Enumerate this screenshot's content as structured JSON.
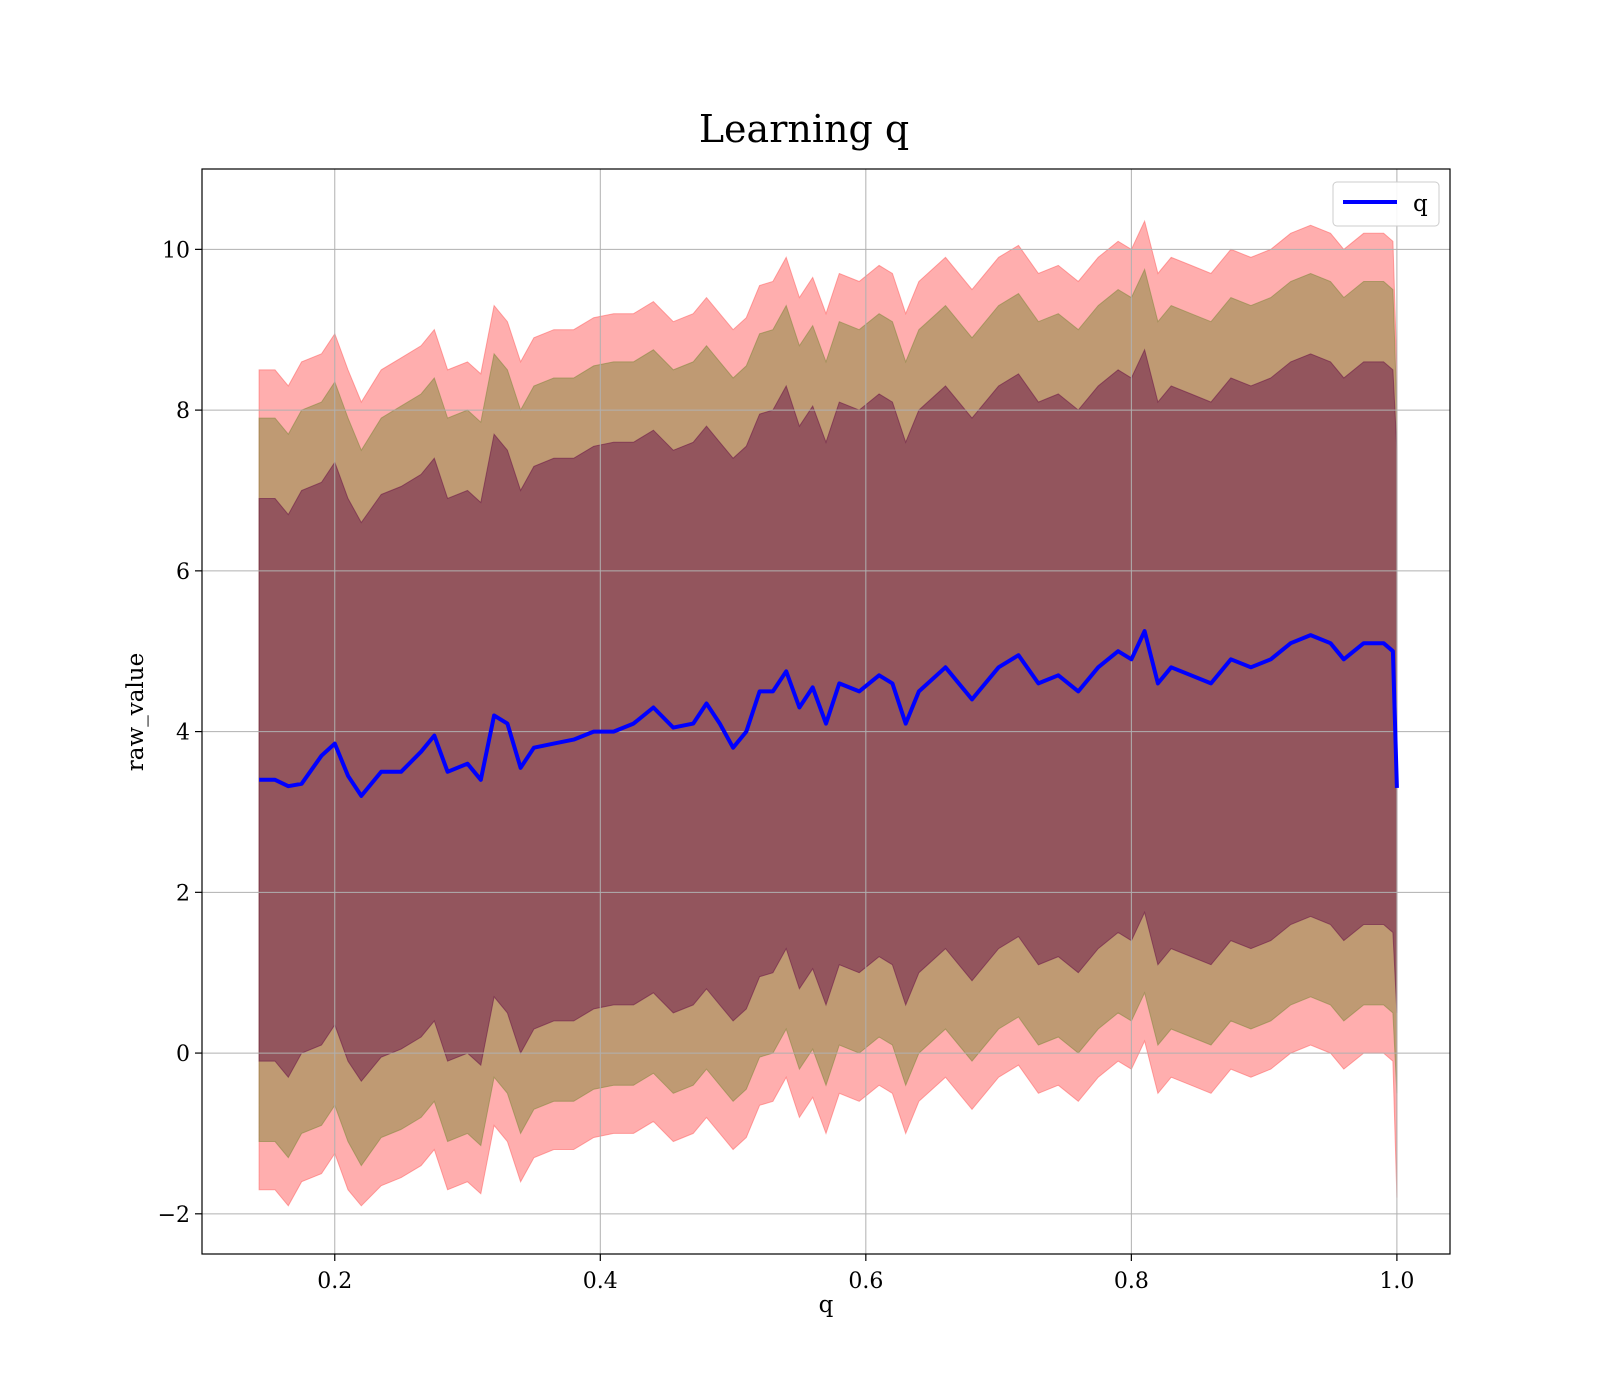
{
  "chart_data": {
    "type": "line",
    "title": "Learning q",
    "xlabel": "q",
    "ylabel": "raw_value",
    "xlim": [
      0.1,
      1.04
    ],
    "ylim": [
      -2.5,
      11.0
    ],
    "xticks": [
      0.2,
      0.4,
      0.6,
      0.8,
      1.0
    ],
    "xtick_labels": [
      "0.2",
      "0.4",
      "0.6",
      "0.8",
      "1.0"
    ],
    "yticks": [
      -2,
      0,
      2,
      4,
      6,
      8,
      10
    ],
    "ytick_labels": [
      "−2",
      "0",
      "2",
      "4",
      "6",
      "8",
      "10"
    ],
    "grid": true,
    "legend": {
      "position": "top-right",
      "entries": [
        {
          "label": "q",
          "color": "#0000ff"
        }
      ]
    },
    "colors": {
      "line": "#0000ff",
      "band_outer": "#ff6b6b",
      "band_middle": "#8a8a44",
      "band_inner": "#6f1e4a"
    },
    "x": [
      0.143,
      0.155,
      0.165,
      0.175,
      0.19,
      0.2,
      0.21,
      0.22,
      0.235,
      0.25,
      0.265,
      0.275,
      0.285,
      0.3,
      0.31,
      0.32,
      0.33,
      0.34,
      0.35,
      0.365,
      0.38,
      0.395,
      0.41,
      0.425,
      0.44,
      0.455,
      0.47,
      0.48,
      0.49,
      0.5,
      0.51,
      0.52,
      0.53,
      0.54,
      0.55,
      0.56,
      0.57,
      0.58,
      0.595,
      0.61,
      0.62,
      0.63,
      0.64,
      0.66,
      0.68,
      0.7,
      0.715,
      0.73,
      0.745,
      0.76,
      0.775,
      0.79,
      0.8,
      0.81,
      0.82,
      0.83,
      0.845,
      0.86,
      0.875,
      0.89,
      0.905,
      0.92,
      0.935,
      0.95,
      0.96,
      0.975,
      0.99,
      0.997,
      1.0
    ],
    "series": [
      {
        "name": "q",
        "y": [
          3.4,
          3.4,
          3.32,
          3.35,
          3.7,
          3.85,
          3.45,
          3.2,
          3.5,
          3.5,
          3.75,
          3.95,
          3.5,
          3.6,
          3.4,
          4.2,
          4.1,
          3.55,
          3.8,
          3.85,
          3.9,
          4.0,
          4.0,
          4.1,
          4.3,
          4.05,
          4.1,
          4.35,
          4.1,
          3.8,
          4.0,
          4.5,
          4.5,
          4.75,
          4.3,
          4.55,
          4.1,
          4.6,
          4.5,
          4.7,
          4.6,
          4.1,
          4.5,
          4.8,
          4.4,
          4.8,
          4.95,
          4.6,
          4.7,
          4.5,
          4.8,
          5.0,
          4.9,
          5.25,
          4.6,
          4.8,
          4.7,
          4.6,
          4.9,
          4.8,
          4.9,
          5.1,
          5.2,
          5.1,
          4.9,
          5.1,
          5.1,
          5.0,
          3.3
        ],
        "band_outer_upper": [
          8.5,
          8.5,
          8.3,
          8.6,
          8.7,
          8.95,
          8.5,
          8.1,
          8.5,
          8.65,
          8.8,
          9.0,
          8.5,
          8.6,
          8.45,
          9.3,
          9.1,
          8.6,
          8.9,
          9.0,
          9.0,
          9.15,
          9.2,
          9.2,
          9.35,
          9.1,
          9.2,
          9.4,
          9.2,
          9.0,
          9.15,
          9.55,
          9.6,
          9.9,
          9.4,
          9.65,
          9.2,
          9.7,
          9.6,
          9.8,
          9.7,
          9.2,
          9.6,
          9.9,
          9.5,
          9.9,
          10.05,
          9.7,
          9.8,
          9.6,
          9.9,
          10.1,
          10.0,
          10.35,
          9.7,
          9.9,
          9.8,
          9.7,
          10.0,
          9.9,
          10.0,
          10.2,
          10.3,
          10.2,
          10.0,
          10.2,
          10.2,
          10.1,
          8.5
        ],
        "band_middle_upper": [
          7.9,
          7.9,
          7.7,
          8.0,
          8.1,
          8.35,
          7.9,
          7.5,
          7.9,
          8.05,
          8.2,
          8.4,
          7.9,
          8.0,
          7.85,
          8.7,
          8.5,
          8.0,
          8.3,
          8.4,
          8.4,
          8.55,
          8.6,
          8.6,
          8.75,
          8.5,
          8.6,
          8.8,
          8.6,
          8.4,
          8.55,
          8.95,
          9.0,
          9.3,
          8.8,
          9.05,
          8.6,
          9.1,
          9.0,
          9.2,
          9.1,
          8.6,
          9.0,
          9.3,
          8.9,
          9.3,
          9.45,
          9.1,
          9.2,
          9.0,
          9.3,
          9.5,
          9.4,
          9.75,
          9.1,
          9.3,
          9.2,
          9.1,
          9.4,
          9.3,
          9.4,
          9.6,
          9.7,
          9.6,
          9.4,
          9.6,
          9.6,
          9.5,
          8.0
        ],
        "band_inner_upper": [
          6.9,
          6.9,
          6.7,
          7.0,
          7.1,
          7.35,
          6.9,
          6.6,
          6.95,
          7.05,
          7.2,
          7.4,
          6.9,
          7.0,
          6.85,
          7.7,
          7.5,
          7.0,
          7.3,
          7.4,
          7.4,
          7.55,
          7.6,
          7.6,
          7.75,
          7.5,
          7.6,
          7.8,
          7.6,
          7.4,
          7.55,
          7.95,
          8.0,
          8.3,
          7.8,
          8.05,
          7.6,
          8.1,
          8.0,
          8.2,
          8.1,
          7.6,
          8.0,
          8.3,
          7.9,
          8.3,
          8.45,
          8.1,
          8.2,
          8.0,
          8.3,
          8.5,
          8.4,
          8.75,
          8.1,
          8.3,
          8.2,
          8.1,
          8.4,
          8.3,
          8.4,
          8.6,
          8.7,
          8.6,
          8.4,
          8.6,
          8.6,
          8.5,
          7.5
        ],
        "band_inner_lower": [
          -0.1,
          -0.1,
          -0.3,
          0.0,
          0.1,
          0.35,
          -0.1,
          -0.35,
          -0.05,
          0.05,
          0.2,
          0.4,
          -0.1,
          0.0,
          -0.15,
          0.7,
          0.5,
          0.0,
          0.3,
          0.4,
          0.4,
          0.55,
          0.6,
          0.6,
          0.75,
          0.5,
          0.6,
          0.8,
          0.6,
          0.4,
          0.55,
          0.95,
          1.0,
          1.3,
          0.8,
          1.05,
          0.6,
          1.1,
          1.0,
          1.2,
          1.1,
          0.6,
          1.0,
          1.3,
          0.9,
          1.3,
          1.45,
          1.1,
          1.2,
          1.0,
          1.3,
          1.5,
          1.4,
          1.75,
          1.1,
          1.3,
          1.2,
          1.1,
          1.4,
          1.3,
          1.4,
          1.6,
          1.7,
          1.6,
          1.4,
          1.6,
          1.6,
          1.5,
          0.5
        ],
        "band_middle_lower": [
          -1.1,
          -1.1,
          -1.3,
          -1.0,
          -0.9,
          -0.65,
          -1.1,
          -1.4,
          -1.05,
          -0.95,
          -0.8,
          -0.6,
          -1.1,
          -1.0,
          -1.15,
          -0.3,
          -0.5,
          -1.0,
          -0.7,
          -0.6,
          -0.6,
          -0.45,
          -0.4,
          -0.4,
          -0.25,
          -0.5,
          -0.4,
          -0.2,
          -0.4,
          -0.6,
          -0.45,
          -0.05,
          0.0,
          0.3,
          -0.2,
          0.05,
          -0.4,
          0.1,
          0.0,
          0.2,
          0.1,
          -0.4,
          0.0,
          0.3,
          -0.1,
          0.3,
          0.45,
          0.1,
          0.2,
          0.0,
          0.3,
          0.5,
          0.4,
          0.75,
          0.1,
          0.3,
          0.2,
          0.1,
          0.4,
          0.3,
          0.4,
          0.6,
          0.7,
          0.6,
          0.4,
          0.6,
          0.6,
          0.5,
          -0.5
        ],
        "band_outer_lower": [
          -1.7,
          -1.7,
          -1.9,
          -1.6,
          -1.5,
          -1.25,
          -1.7,
          -1.9,
          -1.65,
          -1.55,
          -1.4,
          -1.2,
          -1.7,
          -1.6,
          -1.75,
          -0.9,
          -1.1,
          -1.6,
          -1.3,
          -1.2,
          -1.2,
          -1.05,
          -1.0,
          -1.0,
          -0.85,
          -1.1,
          -1.0,
          -0.8,
          -1.0,
          -1.2,
          -1.05,
          -0.65,
          -0.6,
          -0.3,
          -0.8,
          -0.55,
          -1.0,
          -0.5,
          -0.6,
          -0.4,
          -0.5,
          -1.0,
          -0.6,
          -0.3,
          -0.7,
          -0.3,
          -0.15,
          -0.5,
          -0.4,
          -0.6,
          -0.3,
          -0.1,
          -0.2,
          0.15,
          -0.5,
          -0.3,
          -0.4,
          -0.5,
          -0.2,
          -0.3,
          -0.2,
          0.0,
          0.1,
          0.0,
          -0.2,
          0.0,
          0.0,
          -0.1,
          -1.8
        ]
      }
    ]
  }
}
